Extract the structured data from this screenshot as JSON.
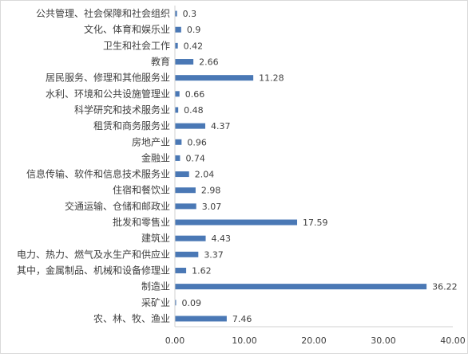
{
  "chart_data": {
    "type": "bar",
    "orientation": "horizontal",
    "categories": [
      "公共管理、社会保障和社会组织",
      "文化、体育和娱乐业",
      "卫生和社会工作",
      "教育",
      "居民服务、修理和其他服务业",
      "水利、环境和公共设施管理业",
      "科学研究和技术服务业",
      "租赁和商务服务业",
      "房地产业",
      "金融业",
      "信息传输、软件和信息技术服务业",
      "住宿和餐饮业",
      "交通运输、仓储和邮政业",
      "批发和零售业",
      "建筑业",
      "电力、热力、燃气及水生产和供应业",
      "其中，金属制品、机械和设备修理业",
      "制造业",
      "采矿业",
      "农、林、牧、渔业"
    ],
    "values": [
      0.3,
      0.9,
      0.42,
      2.66,
      11.28,
      0.66,
      0.48,
      4.37,
      0.96,
      0.74,
      2.04,
      2.98,
      3.07,
      17.59,
      4.43,
      3.37,
      1.62,
      36.22,
      0.09,
      7.46
    ],
    "value_labels": [
      "0.3",
      "0.9",
      "0.42",
      "2.66",
      "11.28",
      "0.66",
      "0.48",
      "4.37",
      "0.96",
      "0.74",
      "2.04",
      "2.98",
      "3.07",
      "17.59",
      "4.43",
      "3.37",
      "1.62",
      "36.22",
      "0.09",
      "7.46"
    ],
    "xlim": [
      0,
      40
    ],
    "xticks": [
      "0.00",
      "10.00",
      "20.00",
      "30.00",
      "40.00"
    ],
    "grid": false,
    "legend": "none",
    "bar_color": "#4a78b5"
  }
}
